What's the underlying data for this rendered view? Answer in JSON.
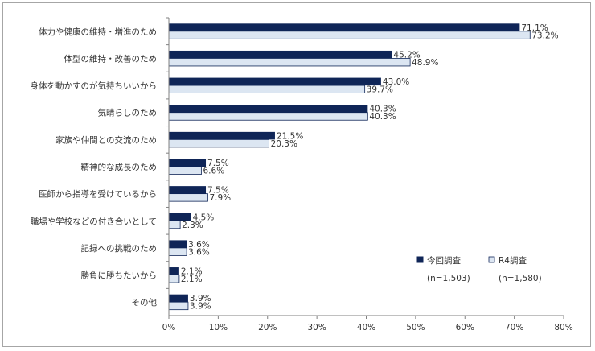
{
  "chart_data": {
    "type": "bar",
    "orientation": "horizontal",
    "categories": [
      "体力や健康の維持・増進のため",
      "体型の維持・改善のため",
      "身体を動かすのが気持ちいいから",
      "気晴らしのため",
      "家族や仲間との交流のため",
      "精神的な成長のため",
      "医師から指導を受けているから",
      "職場や学校などの付き合いとして",
      "記録への挑戦のため",
      "勝負に勝ちたいから",
      "その他"
    ],
    "series": [
      {
        "name": "今回調査",
        "n_label": "(n=1,503)",
        "color": "#0f2557",
        "values": [
          71.1,
          45.2,
          43.0,
          40.3,
          21.5,
          7.5,
          7.5,
          4.5,
          3.6,
          2.1,
          3.9
        ],
        "labels": [
          "71.1%",
          "45.2%",
          "43.0%",
          "40.3%",
          "21.5%",
          "7.5%",
          "7.5%",
          "4.5%",
          "3.6%",
          "2.1%",
          "3.9%"
        ]
      },
      {
        "name": "R4調査",
        "n_label": "(n=1,580)",
        "color": "#dce6f2",
        "values": [
          73.2,
          48.9,
          39.7,
          40.3,
          20.3,
          6.6,
          7.9,
          2.3,
          3.6,
          2.1,
          3.9
        ],
        "labels": [
          "73.2%",
          "48.9%",
          "39.7%",
          "40.3%",
          "20.3%",
          "6.6%",
          "7.9%",
          "2.3%",
          "3.6%",
          "2.1%",
          "3.9%"
        ]
      }
    ],
    "xlim": [
      0,
      80
    ],
    "xticks": [
      "0%",
      "10%",
      "20%",
      "30%",
      "40%",
      "50%",
      "60%",
      "70%",
      "80%"
    ],
    "grid": false,
    "legend_position": "right"
  }
}
